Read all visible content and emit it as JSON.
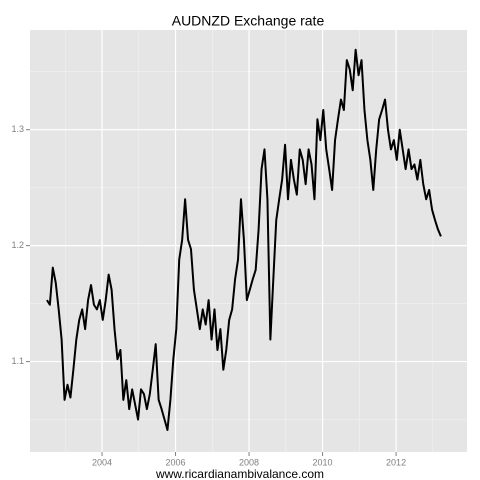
{
  "chart_data": {
    "type": "line",
    "title": "AUDNZD Exchange rate",
    "x_label": "www.ricardianambivalance.com",
    "x": [
      2002.5,
      2002.58,
      2002.66,
      2002.74,
      2002.82,
      2002.9,
      2002.98,
      2003.06,
      2003.14,
      2003.22,
      2003.3,
      2003.38,
      2003.46,
      2003.54,
      2003.62,
      2003.7,
      2003.78,
      2003.86,
      2003.94,
      2004.02,
      2004.1,
      2004.18,
      2004.26,
      2004.34,
      2004.42,
      2004.5,
      2004.58,
      2004.66,
      2004.74,
      2004.82,
      2004.9,
      2004.98,
      2005.06,
      2005.14,
      2005.22,
      2005.3,
      2005.38,
      2005.46,
      2005.54,
      2005.62,
      2005.7,
      2005.78,
      2005.86,
      2005.94,
      2006.02,
      2006.1,
      2006.18,
      2006.26,
      2006.34,
      2006.42,
      2006.5,
      2006.58,
      2006.66,
      2006.74,
      2006.82,
      2006.9,
      2006.98,
      2007.06,
      2007.14,
      2007.22,
      2007.3,
      2007.38,
      2007.46,
      2007.54,
      2007.62,
      2007.7,
      2007.78,
      2007.86,
      2007.94,
      2008.02,
      2008.1,
      2008.18,
      2008.26,
      2008.34,
      2008.42,
      2008.5,
      2008.58,
      2008.66,
      2008.74,
      2008.82,
      2008.9,
      2008.98,
      2009.06,
      2009.14,
      2009.22,
      2009.3,
      2009.38,
      2009.46,
      2009.54,
      2009.62,
      2009.7,
      2009.78,
      2009.86,
      2009.94,
      2010.02,
      2010.1,
      2010.18,
      2010.26,
      2010.34,
      2010.42,
      2010.5,
      2010.58,
      2010.66,
      2010.74,
      2010.82,
      2010.9,
      2010.98,
      2011.06,
      2011.14,
      2011.22,
      2011.3,
      2011.38,
      2011.46,
      2011.54,
      2011.62,
      2011.7,
      2011.78,
      2011.86,
      2011.94,
      2012.02,
      2012.1,
      2012.18,
      2012.26,
      2012.34,
      2012.42,
      2012.5,
      2012.58,
      2012.66,
      2012.74,
      2012.82,
      2012.9,
      2012.98,
      2013.06,
      2013.14,
      2013.22
    ],
    "values": [
      1.153,
      1.149,
      1.181,
      1.168,
      1.145,
      1.119,
      1.067,
      1.08,
      1.069,
      1.093,
      1.119,
      1.136,
      1.145,
      1.128,
      1.153,
      1.166,
      1.149,
      1.145,
      1.153,
      1.136,
      1.153,
      1.175,
      1.162,
      1.128,
      1.102,
      1.11,
      1.067,
      1.084,
      1.059,
      1.076,
      1.063,
      1.05,
      1.076,
      1.072,
      1.059,
      1.072,
      1.093,
      1.115,
      1.067,
      1.059,
      1.05,
      1.041,
      1.067,
      1.102,
      1.128,
      1.188,
      1.205,
      1.24,
      1.205,
      1.197,
      1.162,
      1.145,
      1.128,
      1.145,
      1.132,
      1.153,
      1.119,
      1.145,
      1.11,
      1.128,
      1.093,
      1.11,
      1.136,
      1.145,
      1.171,
      1.188,
      1.24,
      1.205,
      1.153,
      1.162,
      1.171,
      1.179,
      1.214,
      1.266,
      1.283,
      1.24,
      1.119,
      1.171,
      1.222,
      1.24,
      1.257,
      1.287,
      1.24,
      1.274,
      1.257,
      1.244,
      1.283,
      1.274,
      1.253,
      1.283,
      1.27,
      1.24,
      1.309,
      1.291,
      1.317,
      1.283,
      1.266,
      1.248,
      1.291,
      1.309,
      1.326,
      1.317,
      1.36,
      1.352,
      1.334,
      1.369,
      1.347,
      1.36,
      1.317,
      1.291,
      1.274,
      1.248,
      1.283,
      1.309,
      1.317,
      1.326,
      1.3,
      1.283,
      1.291,
      1.274,
      1.3,
      1.283,
      1.266,
      1.283,
      1.266,
      1.27,
      1.257,
      1.274,
      1.253,
      1.24,
      1.248,
      1.231,
      1.222,
      1.214,
      1.208
    ],
    "color": "#000000",
    "xlim": [
      2002.04,
      2013.93
    ],
    "xticks": [
      2004,
      2006,
      2008,
      2010,
      2012
    ],
    "xminor": [
      2003,
      2005,
      2007,
      2009,
      2011,
      2013
    ],
    "ylim": [
      1.022,
      1.386
    ],
    "yticks": [
      1.1,
      1.2,
      1.3
    ],
    "yminor": [
      1.05,
      1.15,
      1.25,
      1.35
    ],
    "grid": true
  }
}
